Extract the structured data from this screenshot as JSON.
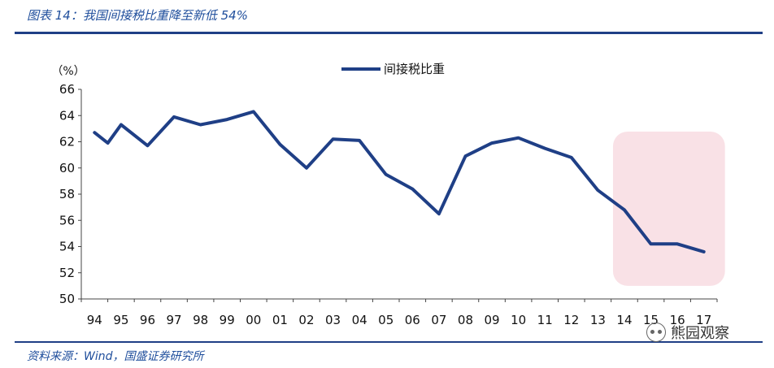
{
  "header": {
    "title": "图表 14：我国间接税比重降至新低 54%"
  },
  "footer": {
    "source": "资料来源：Wind，国盛证券研究所",
    "watermark": "熊园观察"
  },
  "chart_data": {
    "type": "line",
    "y_unit": "（%）",
    "ylim": [
      50,
      66
    ],
    "y_ticks": [
      50,
      52,
      54,
      56,
      58,
      60,
      62,
      64,
      66
    ],
    "x_tick_labels": [
      "94",
      "95",
      "96",
      "97",
      "98",
      "99",
      "00",
      "01",
      "02",
      "03",
      "04",
      "05",
      "06",
      "07",
      "08",
      "09",
      "10",
      "11",
      "12",
      "13",
      "14",
      "15",
      "16",
      "17"
    ],
    "series": [
      {
        "name": "间接税比重",
        "color": "#1f3f86",
        "x": [
          1994,
          1994.5,
          1995,
          1996,
          1997,
          1998,
          1999,
          2000,
          2001,
          2002,
          2003,
          2004,
          2005,
          2006,
          2007,
          2008,
          2009,
          2010,
          2011,
          2012,
          2013,
          2014,
          2015,
          2016,
          2017
        ],
        "values": [
          62.7,
          61.9,
          63.3,
          61.7,
          63.9,
          63.3,
          63.7,
          64.3,
          61.8,
          60.0,
          62.2,
          62.1,
          59.5,
          58.4,
          56.5,
          60.9,
          61.9,
          62.3,
          61.5,
          60.8,
          58.3,
          56.8,
          54.2,
          54.2,
          53.6
        ]
      }
    ],
    "highlight": {
      "from": 2014,
      "to": 2017,
      "color": "#f9e1e6"
    },
    "legend_position": "top-center",
    "grid": false
  }
}
